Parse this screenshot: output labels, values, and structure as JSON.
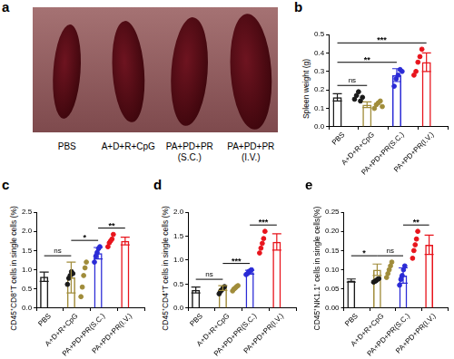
{
  "image_panel": {
    "title": "a",
    "categories": [
      "PBS",
      "A+D+R+CpG",
      "PA+PD+PR (S.C.)",
      "PA+PD+PR (I.V.)"
    ]
  },
  "chart_data": [
    {
      "type": "bar",
      "title": "b",
      "y_label": "Spleen weight (g)",
      "categories": [
        "PBS",
        "A+D+R+CpG",
        "PA+PD+PR(S.C.)",
        "PA+PD+PR(I.V.)"
      ],
      "values": [
        0.16,
        0.12,
        0.28,
        0.35
      ],
      "errors": [
        0.02,
        0.015,
        0.035,
        0.05
      ],
      "points": [
        [
          0.15,
          0.17,
          0.19,
          0.14,
          0.16
        ],
        [
          0.1,
          0.12,
          0.13,
          0.14,
          0.11
        ],
        [
          0.22,
          0.26,
          0.28,
          0.31,
          0.3
        ],
        [
          0.28,
          0.3,
          0.35,
          0.38,
          0.42
        ]
      ],
      "colors": [
        "#1a1a1a",
        "#a08c3a",
        "#2b2bd6",
        "#e8141c"
      ],
      "ylim": [
        0,
        0.5
      ],
      "yticks": [
        {
          "value": 0,
          "label": "0.0"
        },
        0.1,
        0.2,
        0.3,
        0.4,
        0.5
      ],
      "significance": [
        {
          "from": 0,
          "to": 1,
          "text": "ns"
        },
        {
          "from": 0,
          "to": 2,
          "text": "**"
        },
        {
          "from": 0,
          "to": 3,
          "text": "***"
        }
      ],
      "grid": false
    },
    {
      "type": "bar",
      "title": "c",
      "y_label": "CD45⁺CD8⁺T cells in single cells (%)",
      "categories": [
        "PBS",
        "A+D+R+CpG",
        "PA+PD+PR(S.C.)",
        "PA+PD+PR(I.V.)"
      ],
      "values": [
        0.82,
        0.8,
        1.43,
        1.75
      ],
      "errors": [
        0.12,
        0.4,
        0.15,
        0.1
      ],
      "points": [
        [
          0.62,
          0.78,
          0.85,
          0.95,
          0.9
        ],
        [
          0.3,
          0.55,
          0.85,
          1.05,
          1.2
        ],
        [
          1.2,
          1.35,
          1.45,
          1.55,
          1.6
        ],
        [
          1.6,
          1.7,
          1.75,
          1.8,
          1.92
        ]
      ],
      "colors": [
        "#1a1a1a",
        "#a08c3a",
        "#2b2bd6",
        "#e8141c"
      ],
      "ylim": [
        0,
        2.5
      ],
      "yticks": [
        {
          "value": 0,
          "label": "0.0"
        },
        0.5,
        {
          "value": 1,
          "label": "1.0"
        },
        1.5,
        {
          "value": 2,
          "label": "2.0"
        },
        2.5
      ],
      "significance": [
        {
          "from": 0,
          "to": 1,
          "text": "ns"
        },
        {
          "from": 1,
          "to": 2,
          "text": "*"
        },
        {
          "from": 2,
          "to": 3,
          "text": "**"
        }
      ],
      "grid": false
    },
    {
      "type": "bar",
      "title": "d",
      "y_label": "CD45⁺CD4⁺T cells in single cells (%)",
      "categories": [
        "PBS",
        "A+D+R+CpG",
        "PA+PD+PR(S.C.)",
        "PA+PD+PR(I.V.)"
      ],
      "values": [
        0.38,
        0.42,
        0.75,
        1.38
      ],
      "errors": [
        0.06,
        0.05,
        0.04,
        0.17
      ],
      "points": [
        [
          0.3,
          0.35,
          0.38,
          0.42,
          0.45
        ],
        [
          0.36,
          0.4,
          0.42,
          0.45,
          0.47
        ],
        [
          0.7,
          0.72,
          0.76,
          0.78,
          0.8
        ],
        [
          1.15,
          1.25,
          1.35,
          1.45,
          1.6
        ]
      ],
      "colors": [
        "#1a1a1a",
        "#a08c3a",
        "#2b2bd6",
        "#e8141c"
      ],
      "ylim": [
        0,
        2
      ],
      "yticks": [
        {
          "value": 0,
          "label": "0.0"
        },
        0.5,
        {
          "value": 1,
          "label": "1.0"
        },
        1.5,
        {
          "value": 2,
          "label": "2.0"
        }
      ],
      "significance": [
        {
          "from": 0,
          "to": 1,
          "text": "ns"
        },
        {
          "from": 1,
          "to": 2,
          "text": "***"
        },
        {
          "from": 2,
          "to": 3,
          "text": "***"
        }
      ],
      "grid": false
    },
    {
      "type": "bar",
      "title": "e",
      "y_label": "CD45⁺NK1.1⁺ cells in single cells(%)",
      "categories": [
        "PBS",
        "A+D+R+CpG",
        "PA+PD+PR(S.C.)",
        "PA+PD+PR(I.V.)"
      ],
      "values": [
        0.072,
        0.1,
        0.085,
        0.165
      ],
      "errors": [
        0.004,
        0.015,
        0.02,
        0.025
      ],
      "points": [
        [
          0.068,
          0.07,
          0.072,
          0.075,
          0.077
        ],
        [
          0.08,
          0.09,
          0.1,
          0.11,
          0.12
        ],
        [
          0.06,
          0.075,
          0.085,
          0.1,
          0.11
        ],
        [
          0.13,
          0.15,
          0.165,
          0.18,
          0.2
        ]
      ],
      "colors": [
        "#1a1a1a",
        "#a08c3a",
        "#2b2bd6",
        "#e8141c"
      ],
      "ylim": [
        0,
        0.25
      ],
      "yticks": [
        {
          "value": 0,
          "label": "0.00"
        },
        0.05,
        {
          "value": 0.1,
          "label": "0.10"
        },
        0.15,
        {
          "value": 0.2,
          "label": "0.20"
        },
        0.25
      ],
      "significance": [
        {
          "from": 0,
          "to": 1,
          "text": "*"
        },
        {
          "from": 1,
          "to": 2,
          "text": "ns"
        },
        {
          "from": 2,
          "to": 3,
          "text": "**"
        }
      ],
      "grid": false
    }
  ]
}
